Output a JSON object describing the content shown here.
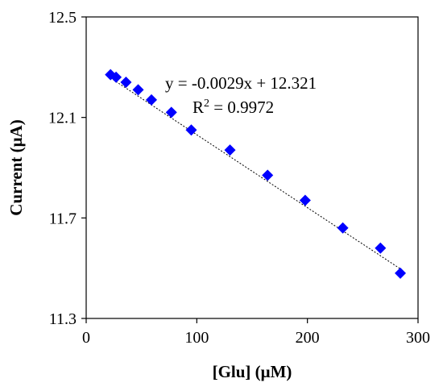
{
  "chart_data": {
    "type": "scatter",
    "title": "",
    "xlabel": "[Glu] (μM)",
    "ylabel": "Current (μA)",
    "xlim": [
      0,
      300
    ],
    "ylim": [
      11.3,
      12.5
    ],
    "x_ticks": [
      0,
      100,
      200,
      300
    ],
    "y_ticks": [
      11.3,
      11.7,
      12.1,
      12.5
    ],
    "x_tick_labels": [
      "0",
      "100",
      "200",
      "300"
    ],
    "y_tick_labels": [
      "11.3",
      "11.7",
      "12.1",
      "12.5"
    ],
    "grid": false,
    "legend": "none",
    "marker": "diamond",
    "marker_color": "#0000FF",
    "series": [
      {
        "x": [
          22,
          27,
          36,
          47,
          59,
          77,
          95,
          130,
          164,
          198,
          232,
          266,
          284
        ],
        "y": [
          12.27,
          12.26,
          12.24,
          12.21,
          12.17,
          12.12,
          12.05,
          11.97,
          11.87,
          11.77,
          11.66,
          11.58,
          11.48
        ]
      }
    ],
    "trendline": {
      "style": "dotted",
      "color": "#000000",
      "slope": -0.0029,
      "intercept": 12.321,
      "x_range": [
        22,
        284
      ]
    },
    "annotations": {
      "equation": "y = -0.0029x + 12.321",
      "r_squared_prefix": "R",
      "r_squared_sup": "2",
      "r_squared_value": " = 0.9972"
    }
  }
}
